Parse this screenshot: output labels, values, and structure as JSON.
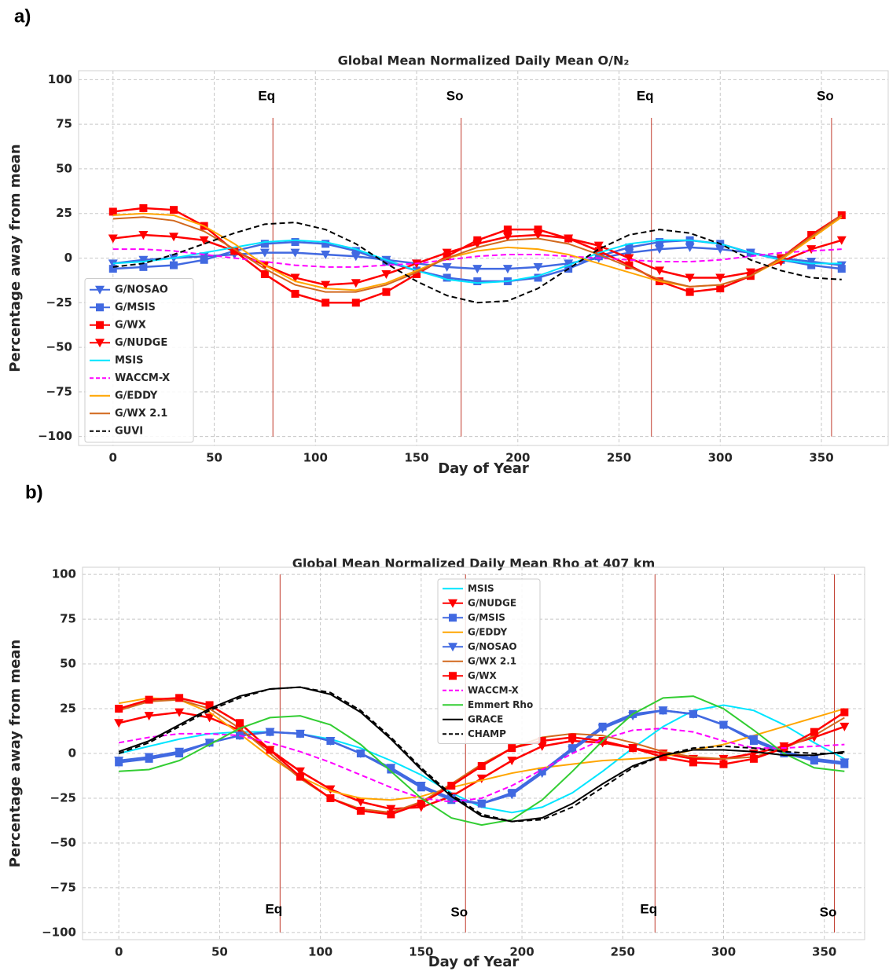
{
  "chart_data": [
    {
      "type": "line",
      "panel_label": "a)",
      "title": "Global Mean Normalized Daily Mean O/N₂",
      "x_label": "Day of Year",
      "y_label": "Percentage away from mean",
      "xlim": [
        -17,
        383
      ],
      "ylim": [
        -105,
        105
      ],
      "xticks": [
        0,
        50,
        100,
        150,
        200,
        250,
        300,
        350
      ],
      "yticks": [
        {
          "value": -100,
          "label": "−100"
        },
        {
          "value": -75,
          "label": "−75"
        },
        {
          "value": -50,
          "label": "−50"
        },
        {
          "value": -25,
          "label": "−25"
        },
        0,
        25,
        50,
        75,
        100
      ],
      "grid": true,
      "legend_position": "lower left",
      "vline_label_position": "top",
      "vlines": [
        {
          "x": 79,
          "label": "Eq"
        },
        {
          "x": 172,
          "label": "So"
        },
        {
          "x": 266,
          "label": "Eq"
        },
        {
          "x": 355,
          "label": "So"
        }
      ],
      "x": [
        0,
        15,
        30,
        45,
        60,
        75,
        90,
        105,
        120,
        135,
        150,
        165,
        180,
        195,
        210,
        225,
        240,
        255,
        270,
        285,
        300,
        315,
        330,
        345,
        360
      ],
      "series": [
        {
          "name": "G/NOSAO",
          "color": "#4169e1",
          "marker": "triangle",
          "dash": "solid",
          "values": [
            -3,
            -1,
            0,
            1,
            2,
            3,
            3,
            2,
            1,
            -1,
            -3,
            -5,
            -6,
            -6,
            -5,
            -3,
            0,
            3,
            5,
            6,
            5,
            3,
            0,
            -2,
            -4
          ]
        },
        {
          "name": "G/MSIS",
          "color": "#4169e1",
          "marker": "square",
          "dash": "solid",
          "values": [
            -6,
            -5,
            -4,
            -1,
            4,
            8,
            9,
            8,
            4,
            -2,
            -7,
            -11,
            -13,
            -13,
            -11,
            -6,
            1,
            6,
            9,
            10,
            8,
            3,
            -1,
            -4,
            -6
          ]
        },
        {
          "name": "G/WX",
          "color": "#ff0000",
          "marker": "square",
          "dash": "solid",
          "values": [
            26,
            28,
            27,
            18,
            4,
            -9,
            -20,
            -25,
            -25,
            -19,
            -9,
            1,
            10,
            16,
            16,
            11,
            4,
            -4,
            -13,
            -19,
            -17,
            -10,
            0,
            13,
            24
          ]
        },
        {
          "name": "G/NUDGE",
          "color": "#ff0000",
          "marker": "triangle",
          "dash": "solid",
          "values": [
            11,
            13,
            12,
            10,
            4,
            -4,
            -11,
            -15,
            -14,
            -9,
            -3,
            3,
            8,
            12,
            13,
            11,
            7,
            0,
            -7,
            -11,
            -11,
            -8,
            -2,
            5,
            10
          ]
        },
        {
          "name": "MSIS",
          "color": "#00e5ff",
          "marker": "none",
          "dash": "solid",
          "values": [
            -3,
            -2,
            0,
            3,
            6,
            9,
            10,
            9,
            5,
            -1,
            -7,
            -12,
            -14,
            -13,
            -10,
            -4,
            3,
            8,
            10,
            10,
            8,
            3,
            -1,
            -3,
            -3
          ]
        },
        {
          "name": "WACCM-X",
          "color": "#ff00ff",
          "marker": "none",
          "dash": "dashed",
          "values": [
            5,
            5,
            4,
            2,
            0,
            -2,
            -4,
            -5,
            -5,
            -4,
            -3,
            -1,
            1,
            2,
            2,
            1,
            0,
            -1,
            -2,
            -2,
            -1,
            1,
            3,
            4,
            5
          ]
        },
        {
          "name": "G/EDDY",
          "color": "#ffa500",
          "marker": "none",
          "dash": "solid",
          "values": [
            24,
            25,
            24,
            18,
            8,
            -4,
            -13,
            -17,
            -18,
            -14,
            -7,
            0,
            4,
            6,
            5,
            2,
            -3,
            -8,
            -13,
            -16,
            -15,
            -10,
            -1,
            11,
            23
          ]
        },
        {
          "name": "G/WX 2.1",
          "color": "#d2691e",
          "marker": "none",
          "dash": "solid",
          "values": [
            22,
            23,
            21,
            15,
            5,
            -6,
            -15,
            -19,
            -19,
            -15,
            -8,
            0,
            6,
            10,
            11,
            8,
            2,
            -5,
            -12,
            -16,
            -15,
            -10,
            0,
            12,
            24
          ]
        },
        {
          "name": "GUVI",
          "color": "#000000",
          "marker": "none",
          "dash": "dashed",
          "values": [
            -5,
            -3,
            2,
            8,
            14,
            19,
            20,
            16,
            8,
            -3,
            -13,
            -21,
            -25,
            -24,
            -17,
            -6,
            5,
            13,
            16,
            14,
            8,
            -1,
            -7,
            -11,
            -12
          ]
        }
      ]
    },
    {
      "type": "line",
      "panel_label": "b)",
      "title": "Global Mean Normalized Daily Mean Rho at 407 km",
      "x_label": "Day of Year",
      "y_label": "Percentage away from mean",
      "xlim": [
        -18,
        370
      ],
      "ylim": [
        -104,
        104
      ],
      "xticks": [
        0,
        50,
        100,
        150,
        200,
        250,
        300,
        350
      ],
      "yticks": [
        {
          "value": -100,
          "label": "−100"
        },
        {
          "value": -75,
          "label": "−75"
        },
        {
          "value": -50,
          "label": "−50"
        },
        {
          "value": -25,
          "label": "−25"
        },
        0,
        25,
        50,
        75,
        100
      ],
      "grid": true,
      "legend_position": "upper center",
      "vline_label_position": "bottom",
      "vlines": [
        {
          "x": 80,
          "label": "Eq"
        },
        {
          "x": 172,
          "label": "So"
        },
        {
          "x": 266,
          "label": "Eq"
        },
        {
          "x": 355,
          "label": "So"
        }
      ],
      "x": [
        0,
        15,
        30,
        45,
        60,
        75,
        90,
        105,
        120,
        135,
        150,
        165,
        180,
        195,
        210,
        225,
        240,
        255,
        270,
        285,
        300,
        315,
        330,
        345,
        360
      ],
      "series": [
        {
          "name": "MSIS",
          "color": "#00e5ff",
          "marker": "none",
          "dash": "solid",
          "values": [
            0,
            4,
            8,
            11,
            12,
            12,
            11,
            8,
            3,
            -4,
            -12,
            -22,
            -30,
            -33,
            -30,
            -22,
            -10,
            3,
            15,
            24,
            27,
            24,
            16,
            6,
            -3
          ]
        },
        {
          "name": "G/NUDGE",
          "color": "#ff0000",
          "marker": "triangle",
          "dash": "solid",
          "values": [
            17,
            21,
            23,
            20,
            13,
            2,
            -10,
            -20,
            -27,
            -31,
            -30,
            -24,
            -14,
            -4,
            4,
            7,
            6,
            3,
            0,
            -3,
            -3,
            0,
            4,
            9,
            15
          ]
        },
        {
          "name": "G/MSIS",
          "color": "#4169e1",
          "marker": "square",
          "dash": "solid",
          "values": [
            -5,
            -3,
            0,
            6,
            10,
            12,
            11,
            7,
            0,
            -9,
            -19,
            -26,
            -28,
            -22,
            -10,
            3,
            15,
            22,
            24,
            22,
            16,
            7,
            0,
            -4,
            -6
          ]
        },
        {
          "name": "G/EDDY",
          "color": "#ffa500",
          "marker": "none",
          "dash": "solid",
          "values": [
            28,
            31,
            30,
            23,
            11,
            -2,
            -13,
            -21,
            -25,
            -26,
            -24,
            -19,
            -15,
            -11,
            -8,
            -6,
            -4,
            -3,
            -2,
            2,
            5,
            10,
            15,
            20,
            25
          ]
        },
        {
          "name": "G/NOSAO",
          "color": "#4169e1",
          "marker": "triangle",
          "dash": "solid",
          "values": [
            -4,
            -2,
            1,
            6,
            10,
            12,
            11,
            7,
            0,
            -8,
            -18,
            -25,
            -28,
            -23,
            -11,
            2,
            14,
            21,
            24,
            22,
            16,
            8,
            1,
            -3,
            -5
          ]
        },
        {
          "name": "G/WX 2.1",
          "color": "#d2691e",
          "marker": "none",
          "dash": "solid",
          "values": [
            24,
            29,
            30,
            25,
            14,
            0,
            -14,
            -25,
            -31,
            -33,
            -27,
            -17,
            -6,
            3,
            9,
            11,
            10,
            6,
            1,
            -2,
            -3,
            -2,
            3,
            10,
            20
          ]
        },
        {
          "name": "G/WX",
          "color": "#ff0000",
          "marker": "square",
          "dash": "solid",
          "values": [
            25,
            30,
            31,
            27,
            17,
            2,
            -13,
            -25,
            -32,
            -34,
            -28,
            -18,
            -7,
            3,
            7,
            9,
            7,
            3,
            -2,
            -5,
            -6,
            -3,
            3,
            12,
            23
          ]
        },
        {
          "name": "WACCM-X",
          "color": "#ff00ff",
          "marker": "none",
          "dash": "dashed",
          "values": [
            6,
            9,
            11,
            11,
            10,
            6,
            1,
            -5,
            -12,
            -19,
            -25,
            -27,
            -25,
            -18,
            -9,
            0,
            8,
            13,
            14,
            12,
            7,
            3,
            3,
            4,
            5
          ]
        },
        {
          "name": "Emmert Rho",
          "color": "#32cd32",
          "marker": "none",
          "dash": "solid",
          "values": [
            -10,
            -9,
            -4,
            5,
            14,
            20,
            21,
            16,
            5,
            -10,
            -25,
            -36,
            -40,
            -37,
            -26,
            -10,
            7,
            22,
            31,
            32,
            25,
            13,
            0,
            -8,
            -10
          ]
        },
        {
          "name": "GRACE",
          "color": "#000000",
          "marker": "none",
          "dash": "solid",
          "values": [
            1,
            7,
            16,
            25,
            32,
            36,
            37,
            33,
            23,
            8,
            -9,
            -24,
            -35,
            -38,
            -36,
            -28,
            -17,
            -7,
            -1,
            2,
            2,
            1,
            -1,
            -1,
            1
          ]
        },
        {
          "name": "CHAMP",
          "color": "#000000",
          "marker": "none",
          "dash": "dashed",
          "values": [
            0,
            6,
            15,
            24,
            31,
            36,
            37,
            34,
            24,
            9,
            -8,
            -23,
            -34,
            -38,
            -37,
            -30,
            -19,
            -8,
            -1,
            3,
            4,
            3,
            1,
            0,
            0
          ]
        }
      ]
    }
  ]
}
